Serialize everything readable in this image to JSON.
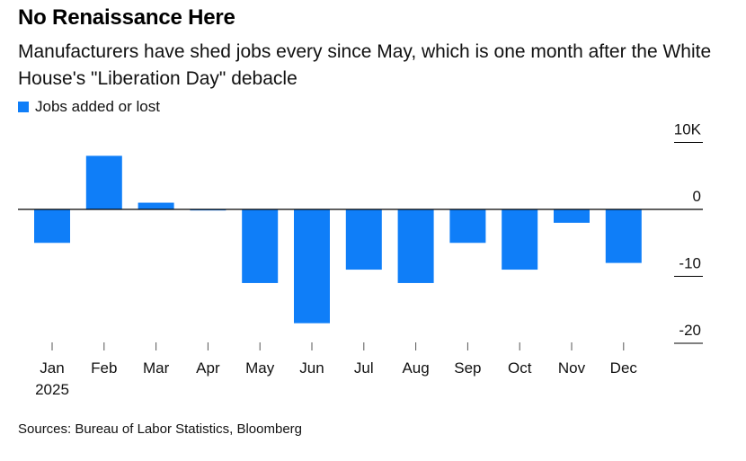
{
  "title": "No Renaissance Here",
  "subtitle": "Manufacturers have shed jobs every since May, which is one month after the White House's \"Liberation Day\" debacle",
  "legend": {
    "label": "Jobs added or lost",
    "color": "#0f7ef8"
  },
  "source": "Sources: Bureau of Labor Statistics, Bloomberg",
  "colors": {
    "bar": "#0f7ef8",
    "axis": "#000000",
    "tick": "#555555"
  },
  "chart_data": {
    "type": "bar",
    "title": "No Renaissance Here",
    "categories": [
      "Jan",
      "Feb",
      "Mar",
      "Apr",
      "May",
      "Jun",
      "Jul",
      "Aug",
      "Sep",
      "Oct",
      "Nov",
      "Dec"
    ],
    "year_label": "2025",
    "series": [
      {
        "name": "Jobs added or lost",
        "values": [
          -5,
          8,
          1,
          0,
          -11,
          -17,
          -9,
          -11,
          -5,
          -9,
          -2,
          -8
        ]
      }
    ],
    "units": "thousands of jobs",
    "ylim": [
      -20,
      10
    ],
    "yticks": [
      {
        "value": 10,
        "label": "10K"
      },
      {
        "value": 0,
        "label": "0"
      },
      {
        "value": -10,
        "label": "-10"
      },
      {
        "value": -20,
        "label": "-20"
      }
    ],
    "y_axis_side": "right",
    "legend_position": "top-left",
    "xlabel": "",
    "ylabel": ""
  }
}
